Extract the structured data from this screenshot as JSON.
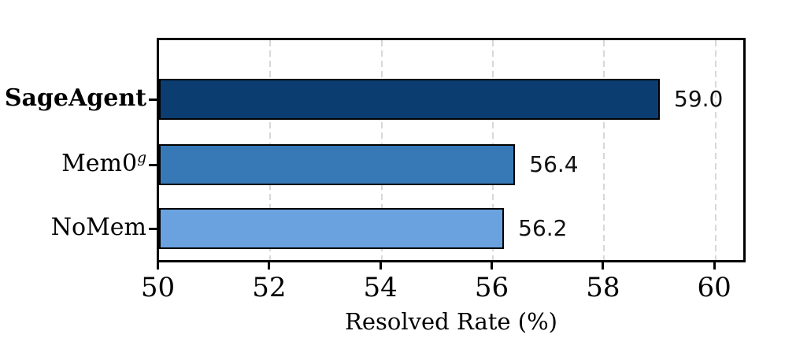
{
  "chart_data": {
    "type": "bar",
    "orientation": "horizontal",
    "title": "",
    "xlabel": "Resolved Rate (%)",
    "ylabel": "",
    "xlim": [
      50,
      60.5
    ],
    "xticks": [
      50,
      52,
      54,
      56,
      58,
      60
    ],
    "grid": "vertical-dashed",
    "legend": "none",
    "rows": [
      {
        "label": "SageAgent",
        "label_sup": "",
        "bold": true,
        "value": 59.0,
        "value_label": "59.0",
        "color": "#0c3d70"
      },
      {
        "label": "Mem0",
        "label_sup": "g",
        "bold": false,
        "value": 56.4,
        "value_label": "56.4",
        "color": "#3779b7"
      },
      {
        "label": "NoMem",
        "label_sup": "",
        "bold": false,
        "value": 56.2,
        "value_label": "56.2",
        "color": "#6aa2e0"
      }
    ],
    "colors": {
      "bar_edge": "#000000",
      "gridline": "#d8d8d8",
      "frame": "#000000",
      "text": "#000000"
    }
  }
}
